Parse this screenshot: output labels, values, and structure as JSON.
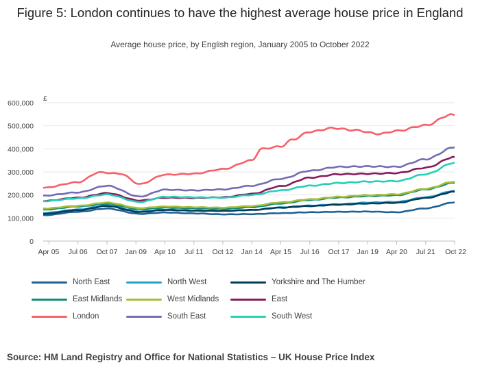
{
  "title": "Figure 5: London continues to have the highest average house price in England",
  "subtitle": "Average house price, by English region, January 2005 to October 2022",
  "source": "Source: HM Land Registry and Office for National Statistics – UK House Price Index",
  "chart_data": {
    "type": "line",
    "y_unit_label": "£",
    "ylim": [
      0,
      600000
    ],
    "y_ticks": [
      {
        "value": 0,
        "label": "0"
      },
      {
        "value": 100000,
        "label": "100,000"
      },
      {
        "value": 200000,
        "label": "200,000"
      },
      {
        "value": 300000,
        "label": "300,000"
      },
      {
        "value": 400000,
        "label": "400,000"
      },
      {
        "value": 500000,
        "label": "500,000"
      },
      {
        "value": 600000,
        "label": "600,000"
      }
    ],
    "x_range": [
      "2005-01",
      "2022-10"
    ],
    "x_ticks": [
      {
        "date": "2005-04",
        "label": "Apr 05"
      },
      {
        "date": "2006-07",
        "label": "Jul 06"
      },
      {
        "date": "2007-10",
        "label": "Oct 07"
      },
      {
        "date": "2009-01",
        "label": "Jan 09"
      },
      {
        "date": "2010-04",
        "label": "Apr 10"
      },
      {
        "date": "2011-07",
        "label": "Jul 11"
      },
      {
        "date": "2012-10",
        "label": "Oct 12"
      },
      {
        "date": "2014-01",
        "label": "Jan 14"
      },
      {
        "date": "2015-04",
        "label": "Apr 15"
      },
      {
        "date": "2016-07",
        "label": "Jul 16"
      },
      {
        "date": "2017-10",
        "label": "Oct 17"
      },
      {
        "date": "2019-01",
        "label": "Jan 19"
      },
      {
        "date": "2020-04",
        "label": "Apr 20"
      },
      {
        "date": "2021-07",
        "label": "Jul 21"
      },
      {
        "date": "2022-10",
        "label": "Oct 22"
      }
    ],
    "grid": "horizontal",
    "legend_position": "bottom",
    "series": [
      {
        "name": "North East",
        "color": "#206095",
        "points": [
          [
            "2005-01",
            112000
          ],
          [
            "2006-07",
            127000
          ],
          [
            "2007-10",
            141000
          ],
          [
            "2009-03",
            118000
          ],
          [
            "2010-04",
            124000
          ],
          [
            "2011-07",
            120000
          ],
          [
            "2012-10",
            116000
          ],
          [
            "2014-01",
            117000
          ],
          [
            "2015-04",
            121000
          ],
          [
            "2016-07",
            125000
          ],
          [
            "2017-10",
            127000
          ],
          [
            "2019-01",
            128000
          ],
          [
            "2020-04",
            125000
          ],
          [
            "2021-07",
            142000
          ],
          [
            "2022-10",
            168000
          ]
        ]
      },
      {
        "name": "North West",
        "color": "#27a0cc",
        "points": [
          [
            "2005-01",
            122000
          ],
          [
            "2006-07",
            137000
          ],
          [
            "2007-10",
            155000
          ],
          [
            "2009-03",
            129000
          ],
          [
            "2010-04",
            136000
          ],
          [
            "2011-07",
            132000
          ],
          [
            "2012-10",
            131000
          ],
          [
            "2014-01",
            135000
          ],
          [
            "2015-04",
            146000
          ],
          [
            "2016-07",
            154000
          ],
          [
            "2017-10",
            160000
          ],
          [
            "2019-01",
            167000
          ],
          [
            "2020-04",
            170000
          ],
          [
            "2021-07",
            190000
          ],
          [
            "2022-10",
            218000
          ]
        ]
      },
      {
        "name": "Yorkshire and The Humber",
        "color": "#003c57",
        "points": [
          [
            "2005-01",
            118000
          ],
          [
            "2006-07",
            134000
          ],
          [
            "2007-10",
            152000
          ],
          [
            "2009-03",
            126000
          ],
          [
            "2010-04",
            135000
          ],
          [
            "2011-07",
            132000
          ],
          [
            "2012-10",
            131000
          ],
          [
            "2014-01",
            135000
          ],
          [
            "2015-04",
            145000
          ],
          [
            "2016-07",
            152000
          ],
          [
            "2017-10",
            158000
          ],
          [
            "2019-01",
            163000
          ],
          [
            "2020-04",
            166000
          ],
          [
            "2021-07",
            187000
          ],
          [
            "2022-10",
            214000
          ]
        ]
      },
      {
        "name": "East Midlands",
        "color": "#118c7b",
        "points": [
          [
            "2005-01",
            136000
          ],
          [
            "2006-07",
            150000
          ],
          [
            "2007-10",
            162000
          ],
          [
            "2009-03",
            138000
          ],
          [
            "2010-04",
            145000
          ],
          [
            "2011-07",
            142000
          ],
          [
            "2012-10",
            140000
          ],
          [
            "2014-01",
            147000
          ],
          [
            "2015-04",
            163000
          ],
          [
            "2016-07",
            178000
          ],
          [
            "2017-10",
            189000
          ],
          [
            "2019-01",
            195000
          ],
          [
            "2020-04",
            199000
          ],
          [
            "2021-07",
            224000
          ],
          [
            "2022-10",
            253000
          ]
        ]
      },
      {
        "name": "West Midlands",
        "color": "#a8bd3a",
        "points": [
          [
            "2005-01",
            141000
          ],
          [
            "2006-07",
            153000
          ],
          [
            "2007-10",
            167000
          ],
          [
            "2009-03",
            143000
          ],
          [
            "2010-04",
            150000
          ],
          [
            "2011-07",
            147000
          ],
          [
            "2012-10",
            145000
          ],
          [
            "2014-01",
            152000
          ],
          [
            "2015-04",
            168000
          ],
          [
            "2016-07",
            181000
          ],
          [
            "2017-10",
            192000
          ],
          [
            "2019-01",
            199000
          ],
          [
            "2020-04",
            203000
          ],
          [
            "2021-07",
            227000
          ],
          [
            "2022-10",
            258000
          ]
        ]
      },
      {
        "name": "East",
        "color": "#871a5b",
        "points": [
          [
            "2005-01",
            174000
          ],
          [
            "2006-07",
            188000
          ],
          [
            "2007-10",
            208000
          ],
          [
            "2009-03",
            176000
          ],
          [
            "2010-04",
            188000
          ],
          [
            "2011-07",
            187000
          ],
          [
            "2012-10",
            190000
          ],
          [
            "2014-01",
            205000
          ],
          [
            "2015-04",
            238000
          ],
          [
            "2016-07",
            275000
          ],
          [
            "2017-10",
            290000
          ],
          [
            "2019-01",
            292000
          ],
          [
            "2020-04",
            295000
          ],
          [
            "2021-07",
            318000
          ],
          [
            "2022-10",
            365000
          ]
        ]
      },
      {
        "name": "London",
        "color": "#f66068",
        "points": [
          [
            "2005-01",
            231000
          ],
          [
            "2006-07",
            255000
          ],
          [
            "2007-06",
            298000
          ],
          [
            "2008-05",
            292000
          ],
          [
            "2009-03",
            247000
          ],
          [
            "2010-04",
            288000
          ],
          [
            "2011-07",
            292000
          ],
          [
            "2012-10",
            312000
          ],
          [
            "2014-01",
            350000
          ],
          [
            "2014-06",
            400000
          ],
          [
            "2015-04",
            410000
          ],
          [
            "2015-10",
            440000
          ],
          [
            "2016-07",
            474000
          ],
          [
            "2017-07",
            490000
          ],
          [
            "2018-06",
            481000
          ],
          [
            "2019-07",
            465000
          ],
          [
            "2020-04",
            478000
          ],
          [
            "2021-07",
            502000
          ],
          [
            "2022-08",
            548000
          ],
          [
            "2022-10",
            545000
          ]
        ]
      },
      {
        "name": "South East",
        "color": "#746cb1",
        "points": [
          [
            "2005-01",
            197000
          ],
          [
            "2006-07",
            211000
          ],
          [
            "2007-10",
            240000
          ],
          [
            "2009-03",
            193000
          ],
          [
            "2010-04",
            223000
          ],
          [
            "2011-07",
            220000
          ],
          [
            "2012-10",
            224000
          ],
          [
            "2014-01",
            240000
          ],
          [
            "2015-04",
            270000
          ],
          [
            "2016-07",
            305000
          ],
          [
            "2017-10",
            322000
          ],
          [
            "2019-01",
            324000
          ],
          [
            "2020-04",
            322000
          ],
          [
            "2021-07",
            355000
          ],
          [
            "2022-10",
            407000
          ]
        ]
      },
      {
        "name": "South West",
        "color": "#22d0b6",
        "points": [
          [
            "2005-01",
            173000
          ],
          [
            "2006-07",
            185000
          ],
          [
            "2007-10",
            202000
          ],
          [
            "2009-03",
            169000
          ],
          [
            "2010-04",
            192000
          ],
          [
            "2011-07",
            190000
          ],
          [
            "2012-10",
            188000
          ],
          [
            "2014-01",
            200000
          ],
          [
            "2015-04",
            220000
          ],
          [
            "2016-07",
            240000
          ],
          [
            "2017-10",
            252000
          ],
          [
            "2019-01",
            258000
          ],
          [
            "2020-04",
            260000
          ],
          [
            "2021-07",
            290000
          ],
          [
            "2022-10",
            340000
          ]
        ]
      }
    ]
  }
}
